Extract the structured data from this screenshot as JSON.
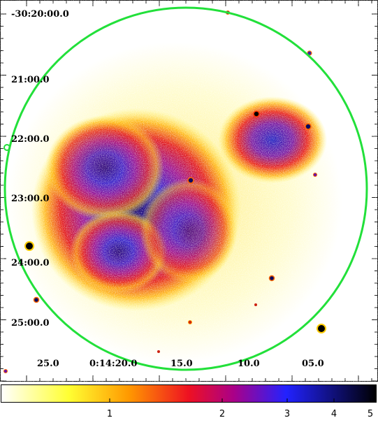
{
  "image": {
    "type": "x-ray sky image",
    "region_color": "#22e03a",
    "frame_color": "#000000"
  },
  "dec_labels": [
    "-30:20:00.0",
    "21:00.0",
    "22:00.0",
    "23:00.0",
    "24:00.0",
    "25:00.0"
  ],
  "ra_labels": [
    "25.0",
    "0:14:20.0",
    "15.0",
    "10.0",
    "05.0"
  ],
  "colorbar": {
    "colormap": "heat (white-yellow-red-blue-black)",
    "colors": [
      "#ffffff",
      "#ffff33",
      "#ff9900",
      "#ee1122",
      "#aa0088",
      "#2222ff",
      "#000000"
    ],
    "scale": "log",
    "tick_labels": [
      "1",
      "2",
      "3",
      "4",
      "5"
    ]
  }
}
